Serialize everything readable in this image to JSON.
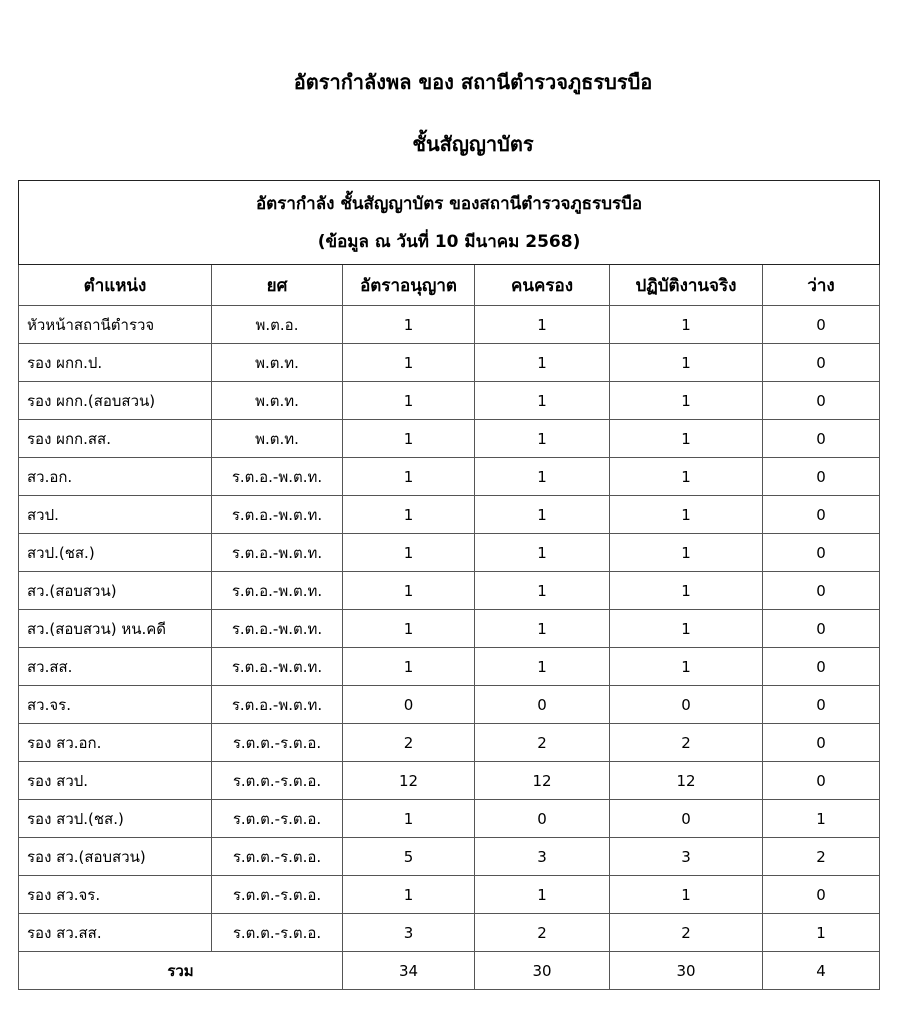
{
  "title": "อัตรากำลังพล ของ สถานีตำรวจภูธรบรบือ",
  "subtitle": "ชั้นสัญญาบัตร",
  "table": {
    "caption_line1": "อัตรากำลัง ชั้นสัญญาบัตร ของสถานีตำรวจภูธรบรบือ",
    "caption_line2": "(ข้อมูล ณ วันที่ 10 มีนาคม 2568)",
    "headers": [
      "ตำแหน่ง",
      "ยศ",
      "อัตราอนุญาต",
      "คนครอง",
      "ปฏิบัติงานจริง",
      "ว่าง"
    ],
    "rows": [
      [
        "หัวหน้าสถานีตำรวจ",
        "พ.ต.อ.",
        "1",
        "1",
        "1",
        "0"
      ],
      [
        "รอง ผกก.ป.",
        "พ.ต.ท.",
        "1",
        "1",
        "1",
        "0"
      ],
      [
        "รอง ผกก.(สอบสวน)",
        "พ.ต.ท.",
        "1",
        "1",
        "1",
        "0"
      ],
      [
        "รอง ผกก.สส.",
        "พ.ต.ท.",
        "1",
        "1",
        "1",
        "0"
      ],
      [
        "สว.อก.",
        "ร.ต.อ.-พ.ต.ท.",
        "1",
        "1",
        "1",
        "0"
      ],
      [
        "สวป.",
        "ร.ต.อ.-พ.ต.ท.",
        "1",
        "1",
        "1",
        "0"
      ],
      [
        "สวป.(ชส.)",
        "ร.ต.อ.-พ.ต.ท.",
        "1",
        "1",
        "1",
        "0"
      ],
      [
        "สว.(สอบสวน)",
        "ร.ต.อ.-พ.ต.ท.",
        "1",
        "1",
        "1",
        "0"
      ],
      [
        "สว.(สอบสวน) หน.คดี",
        "ร.ต.อ.-พ.ต.ท.",
        "1",
        "1",
        "1",
        "0"
      ],
      [
        "สว.สส.",
        "ร.ต.อ.-พ.ต.ท.",
        "1",
        "1",
        "1",
        "0"
      ],
      [
        "สว.จร.",
        "ร.ต.อ.-พ.ต.ท.",
        "0",
        "0",
        "0",
        "0"
      ],
      [
        "รอง สว.อก.",
        "ร.ต.ต.-ร.ต.อ.",
        "2",
        "2",
        "2",
        "0"
      ],
      [
        "รอง สวป.",
        "ร.ต.ต.-ร.ต.อ.",
        "12",
        "12",
        "12",
        "0"
      ],
      [
        "รอง สวป.(ชส.)",
        "ร.ต.ต.-ร.ต.อ.",
        "1",
        "0",
        "0",
        "1"
      ],
      [
        "รอง สว.(สอบสวน)",
        "ร.ต.ต.-ร.ต.อ.",
        "5",
        "3",
        "3",
        "2"
      ],
      [
        "รอง สว.จร.",
        "ร.ต.ต.-ร.ต.อ.",
        "1",
        "1",
        "1",
        "0"
      ],
      [
        "รอง สว.สส.",
        "ร.ต.ต.-ร.ต.อ.",
        "3",
        "2",
        "2",
        "1"
      ]
    ],
    "total": {
      "label": "รวม",
      "values": [
        "34",
        "30",
        "30",
        "4"
      ]
    }
  }
}
